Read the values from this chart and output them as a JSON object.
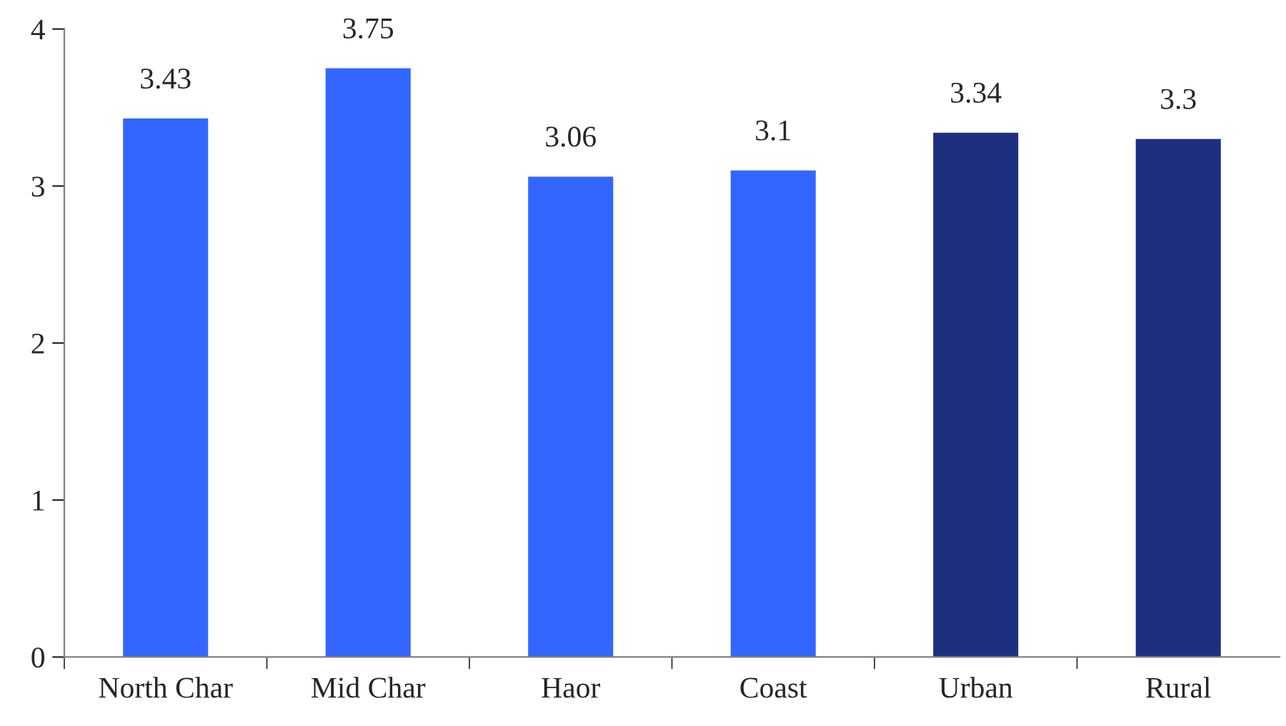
{
  "chart_data": {
    "type": "bar",
    "categories": [
      "North Char",
      "Mid Char",
      "Haor",
      "Coast",
      "Urban",
      "Rural"
    ],
    "values": [
      3.43,
      3.75,
      3.06,
      3.1,
      3.34,
      3.3
    ],
    "colors": [
      "#3366ff",
      "#3366ff",
      "#3366ff",
      "#3366ff",
      "#1f2f80",
      "#1f2f80"
    ],
    "ylim": [
      0,
      4
    ],
    "yticks": [
      0,
      1,
      2,
      3,
      4
    ],
    "grid": false,
    "data_labels": true
  }
}
